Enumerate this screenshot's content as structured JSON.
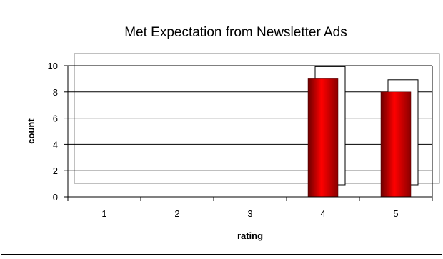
{
  "chart_data": {
    "type": "bar",
    "title": "Met Expectation from Newsletter Ads",
    "xlabel": "rating",
    "ylabel": "count",
    "categories": [
      "1",
      "2",
      "3",
      "4",
      "5"
    ],
    "ylim": [
      0,
      10
    ],
    "yticks": [
      "0",
      "2",
      "4",
      "6",
      "8",
      "10"
    ],
    "series": [
      {
        "values": [
          0,
          0,
          0,
          9,
          8
        ]
      }
    ],
    "grid": true,
    "legend": "none",
    "colors": {
      "bar": "#ff0000",
      "bar_dark": "#7a0000",
      "axis": "#000000",
      "frame": "#808080"
    }
  }
}
